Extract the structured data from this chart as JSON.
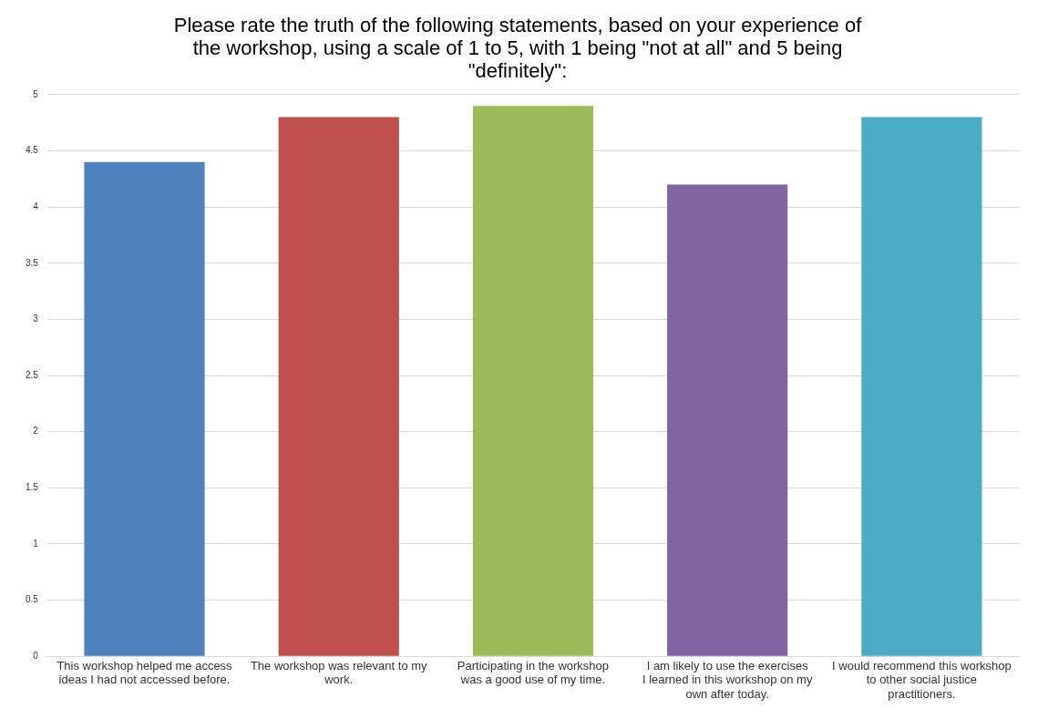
{
  "chart_data": {
    "type": "bar",
    "title": "Please rate the truth of the following statements, based on your experience of the workshop, using a scale of 1 to 5, with 1 being \"not at all\" and 5 being \"definitely\":",
    "categories": [
      "This workshop helped me access ideas I had not accessed before.",
      "The workshop was relevant to my work.",
      "Participating in the workshop was a good use of my time.",
      "I am likely to use the exercises I learned in this workshop on my own after today.",
      "I would recommend this workshop to other social justice practitioners."
    ],
    "values": [
      4.4,
      4.8,
      4.9,
      4.2,
      4.8
    ],
    "colors": [
      "#4f81bd",
      "#c0504d",
      "#9bbb59",
      "#8064a2",
      "#4bacc6"
    ],
    "ylim": [
      0,
      5
    ],
    "yticks": [
      0,
      0.5,
      1,
      1.5,
      2,
      2.5,
      3,
      3.5,
      4,
      4.5,
      5
    ],
    "grid": "y",
    "legend": false
  }
}
